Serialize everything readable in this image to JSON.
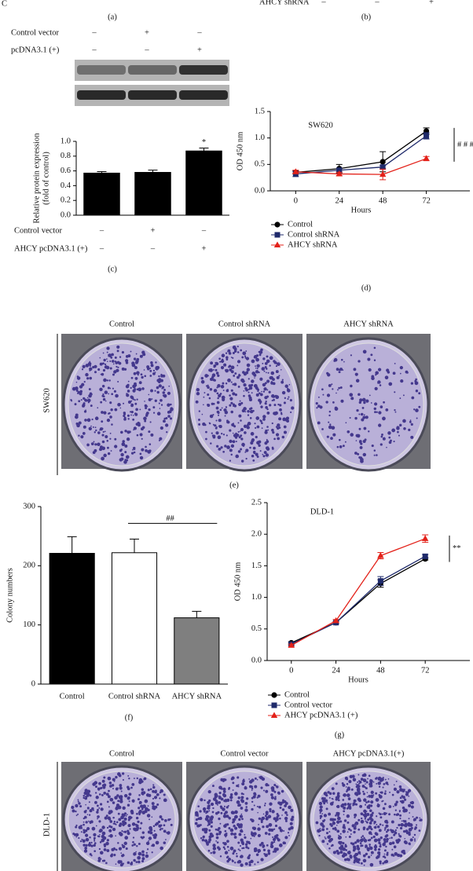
{
  "top": {
    "fragment": "C",
    "label": "AHCY shRNA",
    "signs": [
      "–",
      "–",
      "+"
    ],
    "panel_a": "(a)",
    "panel_b": "(b)"
  },
  "blot": {
    "rows": [
      {
        "label": "Control vector",
        "signs": [
          "–",
          "+",
          "–"
        ]
      },
      {
        "label": "pcDNA3.1 (+)",
        "signs": [
          "–",
          "–",
          "+"
        ]
      }
    ]
  },
  "chart_data": [
    {
      "type": "bar",
      "panel": "(c)",
      "ylabel": [
        "Relative protein expression",
        "(fold of control)"
      ],
      "categories": [
        null,
        null,
        null
      ],
      "values": [
        0.57,
        0.58,
        0.87
      ],
      "errors": [
        0.02,
        0.03,
        0.04
      ],
      "color": "#000000",
      "ylim": [
        0,
        1.0
      ],
      "yticks": [
        {
          "value": 0,
          "label": "0.0"
        },
        0.2,
        0.4,
        0.6,
        0.8,
        {
          "value": 1,
          "label": "1.0"
        }
      ],
      "annotation": "*",
      "rows": [
        {
          "label": "Control vector",
          "signs": [
            "–",
            "+",
            "–"
          ]
        },
        {
          "label": "AHCY pcDNA3.1 (+)",
          "signs": [
            "–",
            "–",
            "+"
          ]
        }
      ]
    },
    {
      "type": "line",
      "panel": "(d)",
      "title": "SW620",
      "xlabel": "Hours",
      "ylabel": "OD 450 nm",
      "x": [
        0,
        24,
        48,
        72
      ],
      "xlim": [
        -14,
        96
      ],
      "xticks": [
        0,
        24,
        48,
        72
      ],
      "ylim": [
        0,
        1.5
      ],
      "yticks": [
        {
          "value": 0,
          "label": "0.0"
        },
        0.5,
        {
          "value": 1,
          "label": "1.0"
        },
        1.5
      ],
      "annotation": "# # #",
      "series": [
        {
          "name": "Control",
          "color": "#000000",
          "marker": "circle",
          "values": [
            0.35,
            0.42,
            0.55,
            1.13
          ],
          "errors": [
            0.03,
            0.08,
            0.19,
            0.06
          ]
        },
        {
          "name": "Control shRNA",
          "color": "#1f2a6b",
          "marker": "square",
          "values": [
            0.32,
            0.39,
            0.45,
            1.04
          ],
          "errors": [
            0.05,
            0.03,
            0.03,
            0.06
          ]
        },
        {
          "name": "AHCY shRNA",
          "color": "#e32119",
          "marker": "triangle",
          "values": [
            0.36,
            0.32,
            0.31,
            0.61
          ],
          "errors": [
            0.03,
            0.03,
            0.1,
            0.04
          ]
        }
      ]
    },
    {
      "type": "bar",
      "panel": "(f)",
      "ylabel": "Colony numbers",
      "categories": [
        "Control",
        "Control shRNA",
        "AHCY shRNA"
      ],
      "values": [
        221,
        222,
        112
      ],
      "errors": [
        28,
        23,
        11
      ],
      "colors": [
        "#000000",
        "#ffffff",
        "#7f7f7f"
      ],
      "ylim": [
        0,
        300
      ],
      "yticks": [
        0,
        100,
        200,
        300
      ],
      "annotation": "##"
    },
    {
      "type": "line",
      "panel": "(g)",
      "title": "DLD-1",
      "xlabel": "Hours",
      "ylabel": "OD 450 nm",
      "x": [
        0,
        24,
        48,
        72
      ],
      "xlim": [
        -13,
        96
      ],
      "xticks": [
        0,
        24,
        48,
        72
      ],
      "ylim": [
        0,
        2.5
      ],
      "yticks": [
        {
          "value": 0,
          "label": "0.0"
        },
        0.5,
        {
          "value": 1,
          "label": "1.0"
        },
        1.5,
        {
          "value": 2,
          "label": "2.0"
        },
        2.5
      ],
      "annotation": "**",
      "series": [
        {
          "name": "Control",
          "color": "#000000",
          "marker": "circle",
          "values": [
            0.28,
            0.6,
            1.22,
            1.61
          ],
          "errors": [
            0.02,
            0.02,
            0.06,
            0.02
          ]
        },
        {
          "name": "Control vector",
          "color": "#1f2a6b",
          "marker": "square",
          "values": [
            0.26,
            0.6,
            1.26,
            1.65
          ],
          "errors": [
            0.02,
            0.02,
            0.07,
            0.03
          ]
        },
        {
          "name": "AHCY pcDNA3.1 (+)",
          "color": "#e32119",
          "marker": "triangle",
          "values": [
            0.24,
            0.63,
            1.66,
            1.93
          ],
          "errors": [
            0.02,
            0.02,
            0.05,
            0.06
          ]
        }
      ]
    }
  ],
  "plates": [
    {
      "row_label": "SW620",
      "labels": [
        "Control",
        "Control shRNA",
        "AHCY shRNA"
      ],
      "panel": "(e)"
    },
    {
      "row_label": "DLD-1",
      "labels": [
        "Control",
        "Control vector",
        "AHCY pcDNA3.1(+)"
      ]
    }
  ]
}
